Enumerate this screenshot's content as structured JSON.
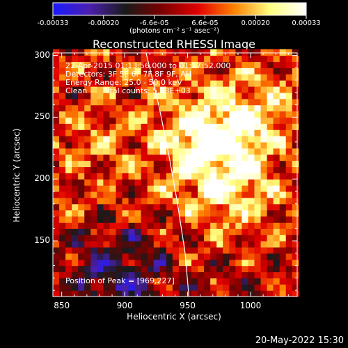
{
  "colorbar": {
    "tick_labels": [
      "-0.00033",
      "-0.00020",
      "-6.6e-05",
      "6.6e-05",
      "0.00020",
      "0.00033"
    ],
    "units": "(photons cm⁻² s⁻¹ asec⁻²)",
    "range": [
      -0.00033,
      0.00033
    ],
    "colors": [
      "#1a1aff",
      "#4b1fb0",
      "#1a1a1a",
      "#7a0000",
      "#e00000",
      "#ff8000",
      "#ffff80",
      "#ffffff"
    ]
  },
  "chart_data": {
    "type": "heatmap",
    "title": "Reconstructed RHESSI Image",
    "xlabel": "Heliocentric X (arcsec)",
    "ylabel": "Heliocentric Y (arcsec)",
    "xlim": [
      843,
      1037
    ],
    "ylim": [
      105,
      302
    ],
    "x_ticks": [
      850,
      900,
      950,
      1000
    ],
    "y_ticks": [
      150,
      200,
      250,
      300
    ],
    "x_tick_labels": [
      "850",
      "900",
      "950",
      "1000"
    ],
    "y_tick_labels": [
      "150",
      "200",
      "250",
      "300"
    ],
    "peak_position": [
      969,
      227
    ],
    "limb": [
      [
        917,
        302
      ],
      [
        927,
        260
      ],
      [
        935,
        220
      ],
      [
        942,
        180
      ],
      [
        948,
        140
      ],
      [
        951,
        105
      ]
    ],
    "annotations": {
      "time_range": "22-Apr-2015 01:13:56.000 to 01:17:52.000",
      "detectors": "Detectors: 3F 5F 6F 7F 8F 9F, AH",
      "energy": "Energy Range: 25.0 - 50.0 keV",
      "clean": "Clean",
      "counts": "Total counts: 5.53E+03",
      "peak": "Position of Peak = [969,227]"
    }
  },
  "footer": {
    "timestamp": "20-May-2022 15:30"
  }
}
